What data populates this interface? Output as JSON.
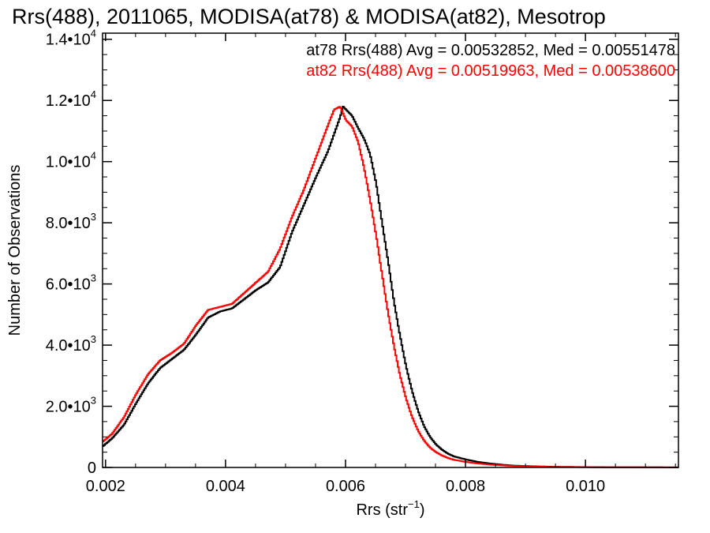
{
  "chart_data": {
    "type": "line",
    "title": "Rrs(488), 2011065, MODISA(at78) & MODISA(at82), Mesotrop",
    "xlabel": "Rrs (str",
    "xlabel_exp": "−1",
    "xlabel_close": ")",
    "ylabel": "Number of Observations",
    "xlim": [
      0.00195,
      0.01155
    ],
    "ylim": [
      0,
      14200
    ],
    "x_ticks": [
      {
        "value": 0.002,
        "label": "0.002"
      },
      {
        "value": 0.004,
        "label": "0.004"
      },
      {
        "value": 0.006,
        "label": "0.006"
      },
      {
        "value": 0.008,
        "label": "0.008"
      },
      {
        "value": 0.01,
        "label": "0.010"
      }
    ],
    "y_ticks": [
      {
        "value": 0,
        "mant": "0",
        "exp": ""
      },
      {
        "value": 2000,
        "mant": "2.0•10",
        "exp": "3"
      },
      {
        "value": 4000,
        "mant": "4.0•10",
        "exp": "3"
      },
      {
        "value": 6000,
        "mant": "6.0•10",
        "exp": "3"
      },
      {
        "value": 8000,
        "mant": "8.0•10",
        "exp": "3"
      },
      {
        "value": 10000,
        "mant": "1.0•10",
        "exp": "4"
      },
      {
        "value": 12000,
        "mant": "1.2•10",
        "exp": "4"
      },
      {
        "value": 14000,
        "mant": "1.4•10",
        "exp": "4"
      }
    ],
    "grid": false,
    "legend": [
      {
        "text": "at78 Rrs(488) Avg = 0.00532852, Med = 0.00551478",
        "color": "#000000"
      },
      {
        "text": "at82 Rrs(488) Avg = 0.00519963, Med = 0.00538600",
        "color": "#ff0000"
      }
    ],
    "series": [
      {
        "color": "#000000",
        "points": [
          [
            0.00195,
            700
          ],
          [
            0.0021,
            950
          ],
          [
            0.0023,
            1400
          ],
          [
            0.0025,
            2100
          ],
          [
            0.0027,
            2750
          ],
          [
            0.0029,
            3250
          ],
          [
            0.0031,
            3550
          ],
          [
            0.0033,
            3850
          ],
          [
            0.0035,
            4350
          ],
          [
            0.0037,
            4900
          ],
          [
            0.0039,
            5100
          ],
          [
            0.0041,
            5200
          ],
          [
            0.0043,
            5500
          ],
          [
            0.0045,
            5800
          ],
          [
            0.0047,
            6050
          ],
          [
            0.0049,
            6550
          ],
          [
            0.0051,
            7700
          ],
          [
            0.0053,
            8600
          ],
          [
            0.0055,
            9500
          ],
          [
            0.0057,
            10350
          ],
          [
            0.0058,
            10900
          ],
          [
            0.0059,
            11450
          ],
          [
            0.00595,
            11800
          ],
          [
            0.0061,
            11500
          ],
          [
            0.0062,
            11100
          ],
          [
            0.0063,
            10750
          ],
          [
            0.0064,
            10250
          ],
          [
            0.0065,
            9300
          ],
          [
            0.0066,
            8000
          ],
          [
            0.0067,
            6750
          ],
          [
            0.0068,
            5400
          ],
          [
            0.0069,
            4300
          ],
          [
            0.007,
            3300
          ],
          [
            0.0071,
            2500
          ],
          [
            0.0072,
            1850
          ],
          [
            0.0073,
            1350
          ],
          [
            0.0074,
            1000
          ],
          [
            0.0075,
            750
          ],
          [
            0.0076,
            580
          ],
          [
            0.0077,
            450
          ],
          [
            0.0078,
            360
          ],
          [
            0.008,
            260
          ],
          [
            0.0082,
            180
          ],
          [
            0.0084,
            130
          ],
          [
            0.0086,
            90
          ],
          [
            0.0088,
            60
          ],
          [
            0.009,
            45
          ],
          [
            0.0094,
            25
          ],
          [
            0.01,
            12
          ],
          [
            0.0106,
            6
          ],
          [
            0.01155,
            3
          ]
        ]
      },
      {
        "color": "#ff0000",
        "points": [
          [
            0.00195,
            850
          ],
          [
            0.0021,
            1100
          ],
          [
            0.0023,
            1650
          ],
          [
            0.0025,
            2400
          ],
          [
            0.0027,
            3050
          ],
          [
            0.0029,
            3500
          ],
          [
            0.0031,
            3750
          ],
          [
            0.0033,
            4050
          ],
          [
            0.0035,
            4650
          ],
          [
            0.0037,
            5150
          ],
          [
            0.0039,
            5250
          ],
          [
            0.0041,
            5350
          ],
          [
            0.0043,
            5700
          ],
          [
            0.0045,
            6050
          ],
          [
            0.0047,
            6400
          ],
          [
            0.0049,
            7150
          ],
          [
            0.0051,
            8200
          ],
          [
            0.0053,
            9100
          ],
          [
            0.0055,
            10150
          ],
          [
            0.0057,
            11200
          ],
          [
            0.0058,
            11700
          ],
          [
            0.0059,
            11800
          ],
          [
            0.006,
            11350
          ],
          [
            0.0061,
            11150
          ],
          [
            0.0062,
            10650
          ],
          [
            0.0063,
            9800
          ],
          [
            0.0064,
            8750
          ],
          [
            0.0065,
            7600
          ],
          [
            0.0066,
            6300
          ],
          [
            0.0067,
            5050
          ],
          [
            0.0068,
            3950
          ],
          [
            0.0069,
            3000
          ],
          [
            0.007,
            2250
          ],
          [
            0.0071,
            1650
          ],
          [
            0.0072,
            1200
          ],
          [
            0.0073,
            880
          ],
          [
            0.0074,
            650
          ],
          [
            0.0075,
            500
          ],
          [
            0.0076,
            390
          ],
          [
            0.0077,
            310
          ],
          [
            0.0078,
            250
          ],
          [
            0.008,
            180
          ],
          [
            0.0082,
            130
          ],
          [
            0.0084,
            95
          ],
          [
            0.0086,
            70
          ],
          [
            0.0088,
            50
          ],
          [
            0.009,
            35
          ],
          [
            0.0094,
            20
          ],
          [
            0.01,
            10
          ],
          [
            0.0106,
            5
          ],
          [
            0.01155,
            2
          ]
        ]
      }
    ]
  }
}
